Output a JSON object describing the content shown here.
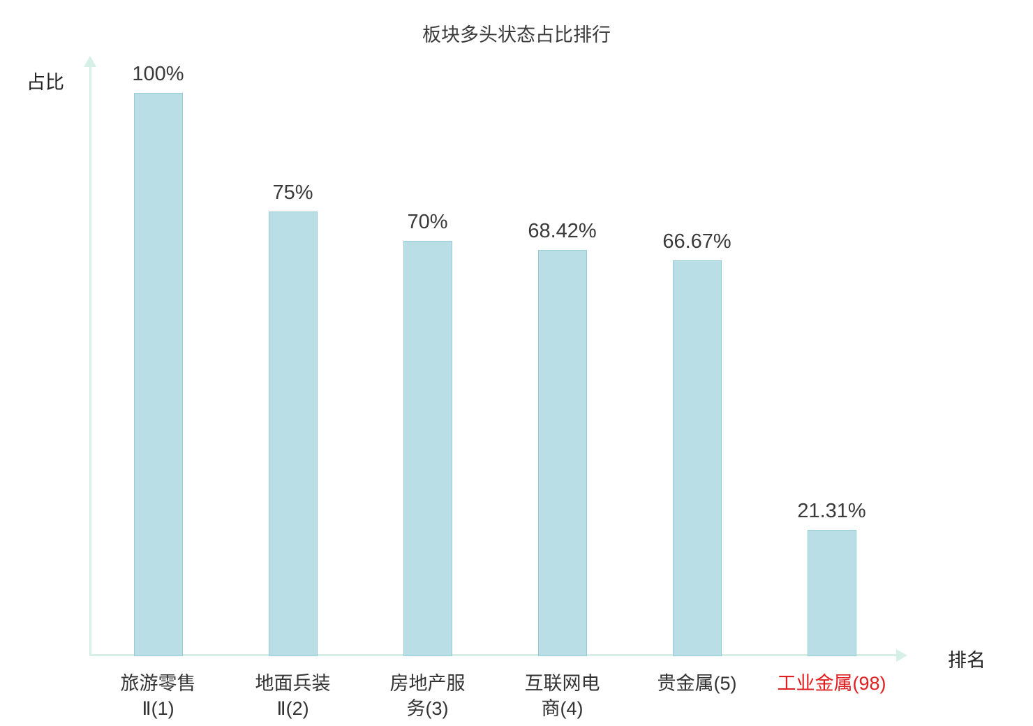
{
  "page": {
    "background": "#ffffff"
  },
  "chart_data": {
    "type": "bar",
    "title": "板块多头状态占比排行",
    "xlabel": "排名",
    "ylabel": "占比",
    "ylim": [
      0,
      100
    ],
    "grid": false,
    "legend": null,
    "categories": [
      "旅游零售\nⅡ(1)",
      "地面兵装\nⅡ(2)",
      "房地产服\n务(3)",
      "互联网电\n商(4)",
      "贵金属(5)",
      "工业金属(98)"
    ],
    "values": [
      100,
      75,
      70,
      68.42,
      66.67,
      21.31
    ],
    "value_labels": [
      "100%",
      "75%",
      "70%",
      "68.42%",
      "66.67%",
      "21.31%"
    ],
    "highlight_index": 5,
    "colors": {
      "bar_fill": "#b9dee5",
      "bar_border": "#98ccd4",
      "axis": "#d6efe7",
      "text": "#333333",
      "value_text": "#3a3a3a",
      "highlight_text": "#e02020"
    }
  }
}
